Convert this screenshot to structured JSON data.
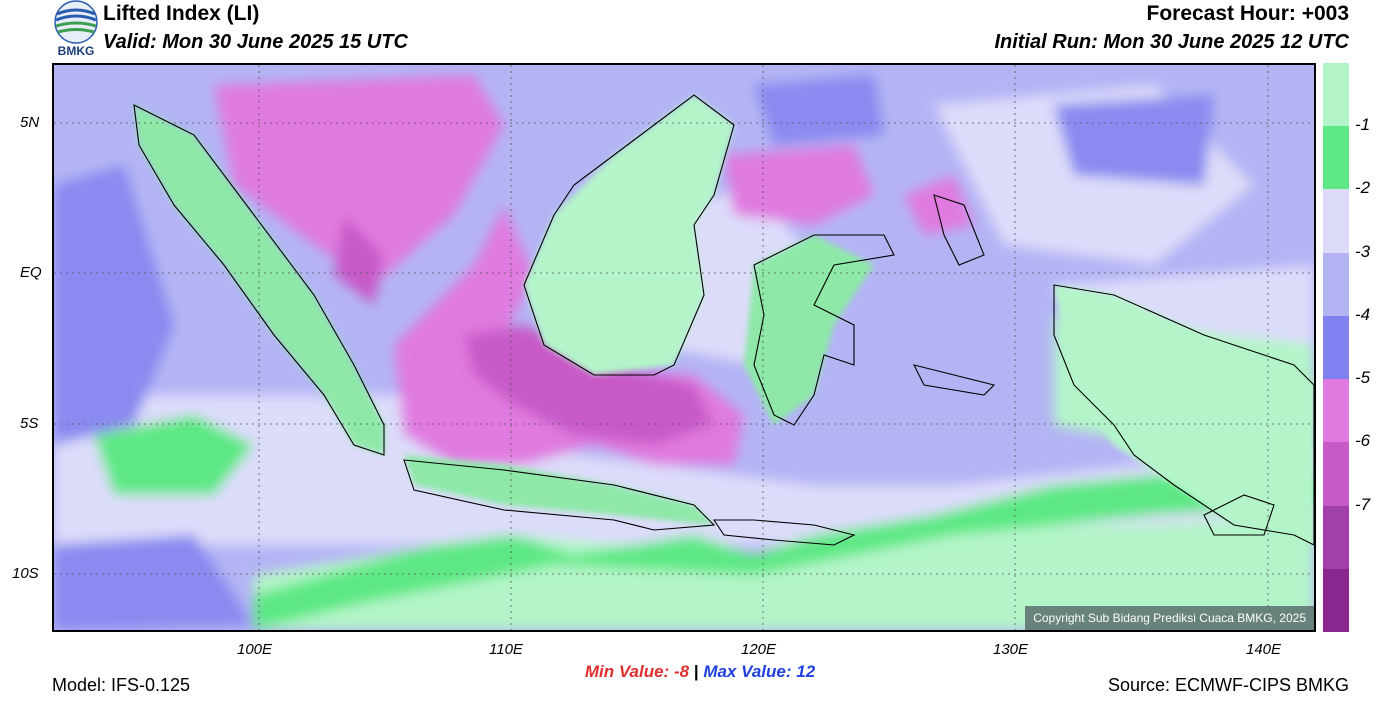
{
  "header": {
    "logo_text": "BMKG",
    "title": "Lifted Index (LI)",
    "valid": "Valid: Mon 30 June 2025 15 UTC",
    "forecast_hour": "Forecast Hour: +003",
    "initial_run": "Initial Run: Mon 30 June 2025 12 UTC"
  },
  "map": {
    "lat_labels": [
      "5N",
      "EQ",
      "5S",
      "10S"
    ],
    "lon_labels": [
      "100E",
      "110E",
      "120E",
      "130E",
      "140E"
    ],
    "copyright": "Copyright Sub Bidang Prediksi Cuaca BMKG, 2025"
  },
  "legend": {
    "labels": [
      "-1",
      "-2",
      "-3",
      "-4",
      "-5",
      "-6",
      "-7"
    ],
    "colors": [
      "#b3f5c8",
      "#5de885",
      "#dcdcfa",
      "#b4b4f5",
      "#8080f0",
      "#e07ae0",
      "#c85ac8",
      "#a040a8",
      "#88288e"
    ]
  },
  "stats": {
    "min_label": "Min Value:",
    "min_value": "-8",
    "separator": "|",
    "max_label": "Max Value:",
    "max_value": "12",
    "min_color": "#e03030",
    "max_color": "#2040e0"
  },
  "footer": {
    "model": "Model: IFS-0.125",
    "source": "Source: ECMWF-CIPS BMKG"
  }
}
